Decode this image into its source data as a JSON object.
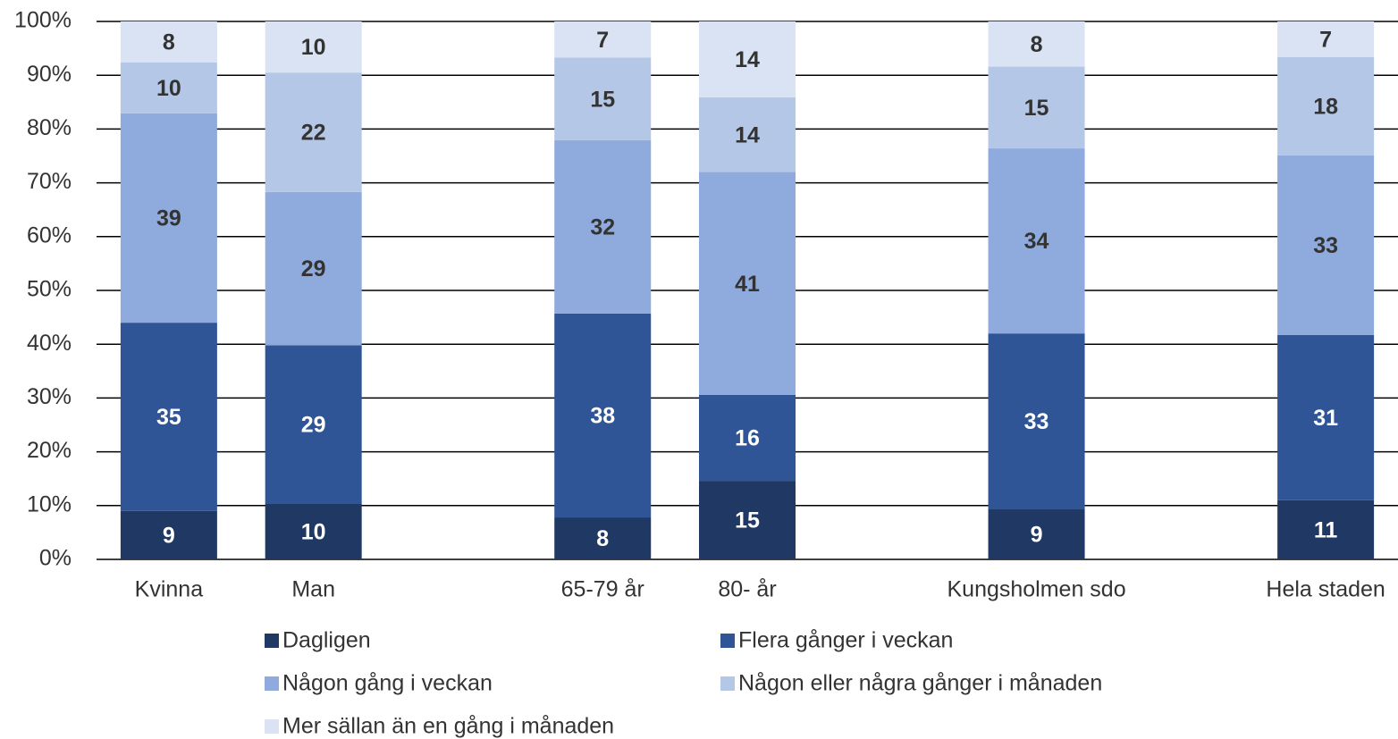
{
  "chart_data": {
    "type": "bar",
    "stacked": true,
    "categories": [
      "Kvinna",
      "Man",
      null,
      "65-79 år",
      "80- år",
      null,
      "Kungsholmen sdo",
      null,
      "Hela staden"
    ],
    "series": [
      {
        "name": "Dagligen",
        "color": "#203864",
        "label_color": "#ffffff",
        "values": [
          9.0,
          10.4,
          null,
          7.8,
          14.6,
          null,
          9.3,
          null,
          11.0
        ],
        "value_labels": [
          "9",
          "10",
          null,
          "8",
          "15",
          null,
          "9",
          null,
          "11"
        ]
      },
      {
        "name": "Flera gånger i veckan",
        "color": "#2f5597",
        "label_color": "#ffffff",
        "values": [
          35.0,
          29.4,
          null,
          37.9,
          16.0,
          null,
          32.7,
          null,
          30.7
        ],
        "value_labels": [
          "35",
          "29",
          null,
          "38",
          "16",
          null,
          "33",
          null,
          "31"
        ]
      },
      {
        "name": "Någon gång i veckan",
        "color": "#8faadc",
        "label_color": "#333333",
        "values": [
          38.9,
          28.5,
          null,
          32.2,
          41.4,
          null,
          34.4,
          null,
          33.4
        ],
        "value_labels": [
          "39",
          "29",
          null,
          "32",
          "41",
          null,
          "34",
          null,
          "33"
        ]
      },
      {
        "name": "Någon eller några gånger i månaden",
        "color": "#b4c7e7",
        "label_color": "#333333",
        "values": [
          9.5,
          22.2,
          null,
          15.4,
          13.9,
          null,
          15.2,
          null,
          18.3
        ],
        "value_labels": [
          "10",
          "22",
          null,
          "15",
          "14",
          null,
          "15",
          null,
          "18"
        ]
      },
      {
        "name": "Mer sällan än en gång i månaden",
        "color": "#dae3f3",
        "label_color": "#333333",
        "values": [
          7.6,
          9.5,
          null,
          6.7,
          14.1,
          null,
          8.4,
          null,
          6.6
        ],
        "value_labels": [
          "8",
          "10",
          null,
          "7",
          "14",
          null,
          "8",
          null,
          "7"
        ]
      }
    ],
    "ylim": [
      0,
      100
    ],
    "yticks": [
      {
        "value": 0,
        "label": "0%"
      },
      {
        "value": 10,
        "label": "10%"
      },
      {
        "value": 20,
        "label": "20%"
      },
      {
        "value": 30,
        "label": "30%"
      },
      {
        "value": 40,
        "label": "40%"
      },
      {
        "value": 50,
        "label": "50%"
      },
      {
        "value": 60,
        "label": "60%"
      },
      {
        "value": 70,
        "label": "70%"
      },
      {
        "value": 80,
        "label": "80%"
      },
      {
        "value": 90,
        "label": "90%"
      },
      {
        "value": 100,
        "label": "100%"
      }
    ],
    "grid": true,
    "legend": "bottom"
  }
}
